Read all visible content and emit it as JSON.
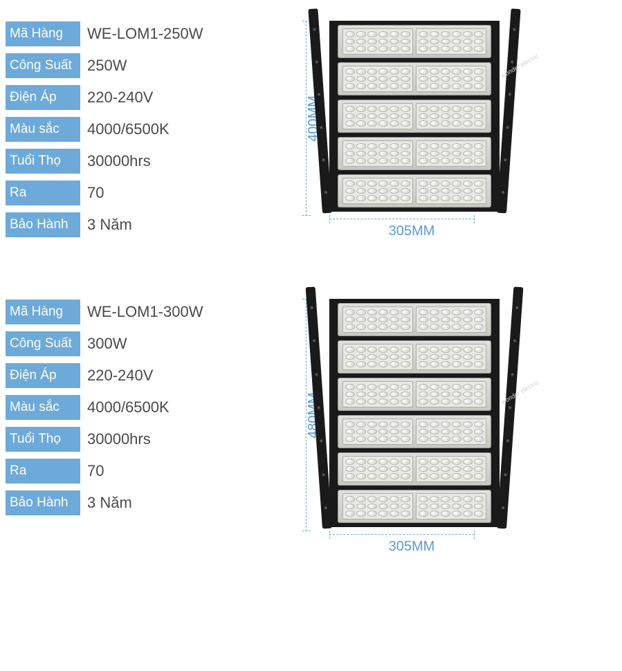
{
  "labels": {
    "code": "Mã Hàng",
    "power": "Công Suất",
    "voltage": "Điện Áp",
    "color": "Màu sắc",
    "life": "Tuổi Thọ",
    "ra": "Ra",
    "warranty": "Bảo Hành"
  },
  "products": [
    {
      "code": "WE-LOM1-250W",
      "power": "250W",
      "voltage": "220-240V",
      "color": "4000/6500K",
      "life": "30000hrs",
      "ra": "70",
      "warranty": "3 Năm",
      "height_label": "400MM",
      "width_label": "305MM",
      "modules": 5
    },
    {
      "code": "WE-LOM1-300W",
      "power": "300W",
      "voltage": "220-240V",
      "color": "4000/6500K",
      "life": "30000hrs",
      "ra": "70",
      "warranty": "3 Năm",
      "height_label": "480MM",
      "width_label": "305MM",
      "modules": 6
    }
  ],
  "watermark": "wonder electric",
  "colors": {
    "label_bg": "#6da9d9",
    "label_text": "#ffffff",
    "value_text": "#4a4a4a",
    "dim_text": "#5a9bd4",
    "dim_line": "#6da9d9"
  }
}
